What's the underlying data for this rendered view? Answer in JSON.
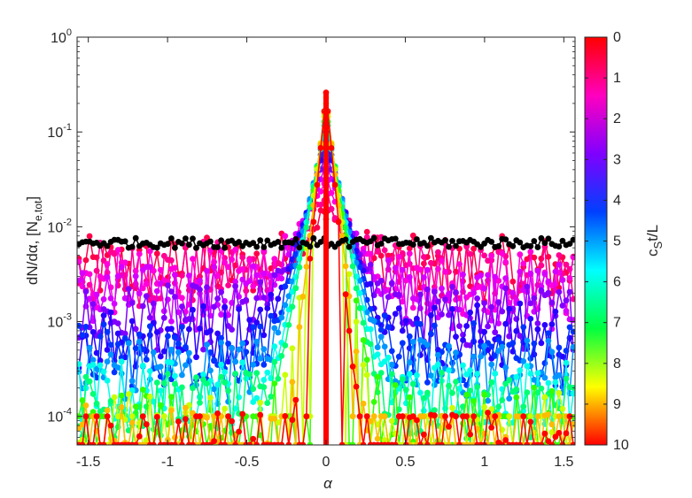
{
  "chart_data": {
    "type": "scatter",
    "title": "",
    "xlabel": "α",
    "ylabel_parts": [
      "dN/dα, [N",
      "e,tot",
      "]"
    ],
    "xlim": [
      -1.5708,
      1.5708
    ],
    "ylim": [
      5e-05,
      1
    ],
    "yscale": "log",
    "grid": false,
    "x_ticks": [
      -1.5,
      -1,
      -0.5,
      0,
      0.5,
      1,
      1.5
    ],
    "x_tick_labels": [
      "-1.5",
      "-1",
      "-0.5",
      "0",
      "0.5",
      "1",
      "1.5"
    ],
    "y_ticks": [
      0.0001,
      0.001,
      0.01,
      0.1,
      1
    ],
    "y_tick_labels": [
      {
        "base": "10",
        "exp": "-4"
      },
      {
        "base": "10",
        "exp": "-3"
      },
      {
        "base": "10",
        "exp": "-2"
      },
      {
        "base": "10",
        "exp": "-1"
      },
      {
        "base": "10",
        "exp": "0"
      }
    ],
    "colorbar": {
      "label_parts": [
        "c",
        "S",
        "t/L"
      ],
      "range": [
        0,
        10
      ],
      "ticks": [
        0,
        1,
        2,
        3,
        4,
        5,
        6,
        7,
        8,
        9,
        10
      ],
      "colormap": [
        "#ff0000",
        "#ff00bf",
        "#8000ff",
        "#0040ff",
        "#00ffff",
        "#00ff40",
        "#ffff00",
        "#ff0000"
      ]
    },
    "series": [
      {
        "time": 0,
        "color": "#000000",
        "plateau": 0.0068,
        "peak": 0.0068,
        "width": 0.0
      },
      {
        "time": 0.5,
        "color": "#ff004a",
        "plateau": 0.0036,
        "peak": 0.012,
        "width": 0.12
      },
      {
        "time": 1,
        "color": "#ff0092",
        "plateau": 0.0032,
        "peak": 0.018,
        "width": 0.11
      },
      {
        "time": 1.5,
        "color": "#ff00db",
        "plateau": 0.0026,
        "peak": 0.03,
        "width": 0.1
      },
      {
        "time": 2,
        "color": "#d500ff",
        "plateau": 0.0018,
        "peak": 0.045,
        "width": 0.09
      },
      {
        "time": 2.5,
        "color": "#8000ff",
        "plateau": 0.0011,
        "peak": 0.06,
        "width": 0.08
      },
      {
        "time": 3,
        "color": "#2a00ff",
        "plateau": 0.00072,
        "peak": 0.08,
        "width": 0.07
      },
      {
        "time": 3.5,
        "color": "#0033ff",
        "plateau": 0.00045,
        "peak": 0.1,
        "width": 0.06
      },
      {
        "time": 4,
        "color": "#0095ff",
        "plateau": 0.0003,
        "peak": 0.12,
        "width": 0.055
      },
      {
        "time": 5,
        "color": "#00ffea",
        "plateau": 0.00018,
        "peak": 0.13,
        "width": 0.05
      },
      {
        "time": 6,
        "color": "#00ff73",
        "plateau": 0.00013,
        "peak": 0.15,
        "width": 0.045
      },
      {
        "time": 7,
        "color": "#33ff00",
        "plateau": 0.0001,
        "peak": 0.17,
        "width": 0.04
      },
      {
        "time": 8,
        "color": "#c9ff00",
        "plateau": 8e-05,
        "peak": 0.2,
        "width": 0.035
      },
      {
        "time": 9,
        "color": "#ffbb00",
        "plateau": 6e-05,
        "peak": 0.23,
        "width": 0.03
      },
      {
        "time": 10,
        "color": "#ff0000",
        "plateau": 5e-05,
        "peak": 0.26,
        "width": 0.025
      }
    ]
  }
}
